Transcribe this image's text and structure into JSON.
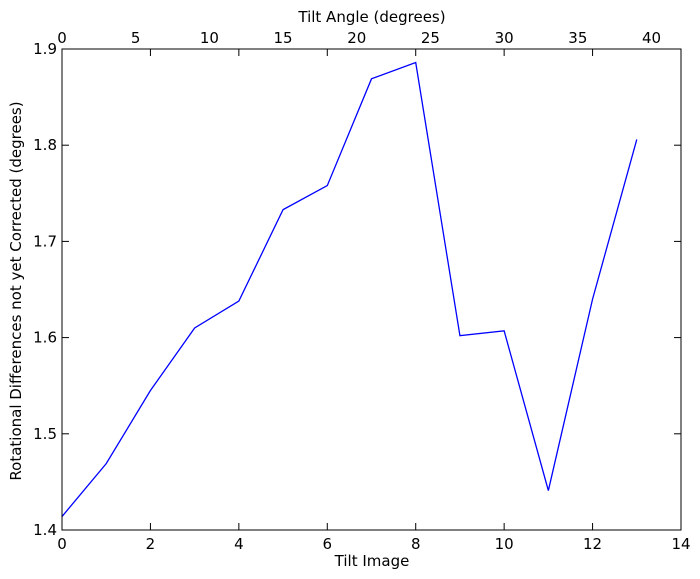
{
  "chart_data": {
    "type": "line",
    "xlabel": "Tilt Image",
    "ylabel": "Rotational Differences not yet Corrected (degrees)",
    "top_xlabel": "Tilt Angle (degrees)",
    "xlim": [
      0,
      14
    ],
    "ylim": [
      1.4,
      1.9
    ],
    "top_xlim": [
      0,
      42
    ],
    "x_ticks": [
      0,
      2,
      4,
      6,
      8,
      10,
      12,
      14
    ],
    "y_ticks": [
      1.4,
      1.5,
      1.6,
      1.7,
      1.8,
      1.9
    ],
    "top_x_ticks": [
      0,
      5,
      10,
      15,
      20,
      25,
      30,
      35,
      40
    ],
    "grid": false,
    "series": [
      {
        "color": "#0000ff",
        "x": [
          0,
          1,
          2,
          3,
          4,
          5,
          6,
          7,
          8,
          9,
          10,
          11,
          12,
          13
        ],
        "y": [
          1.414,
          1.469,
          1.545,
          1.61,
          1.638,
          1.733,
          1.758,
          1.869,
          1.886,
          1.602,
          1.607,
          1.441,
          1.64,
          1.806
        ]
      }
    ]
  }
}
